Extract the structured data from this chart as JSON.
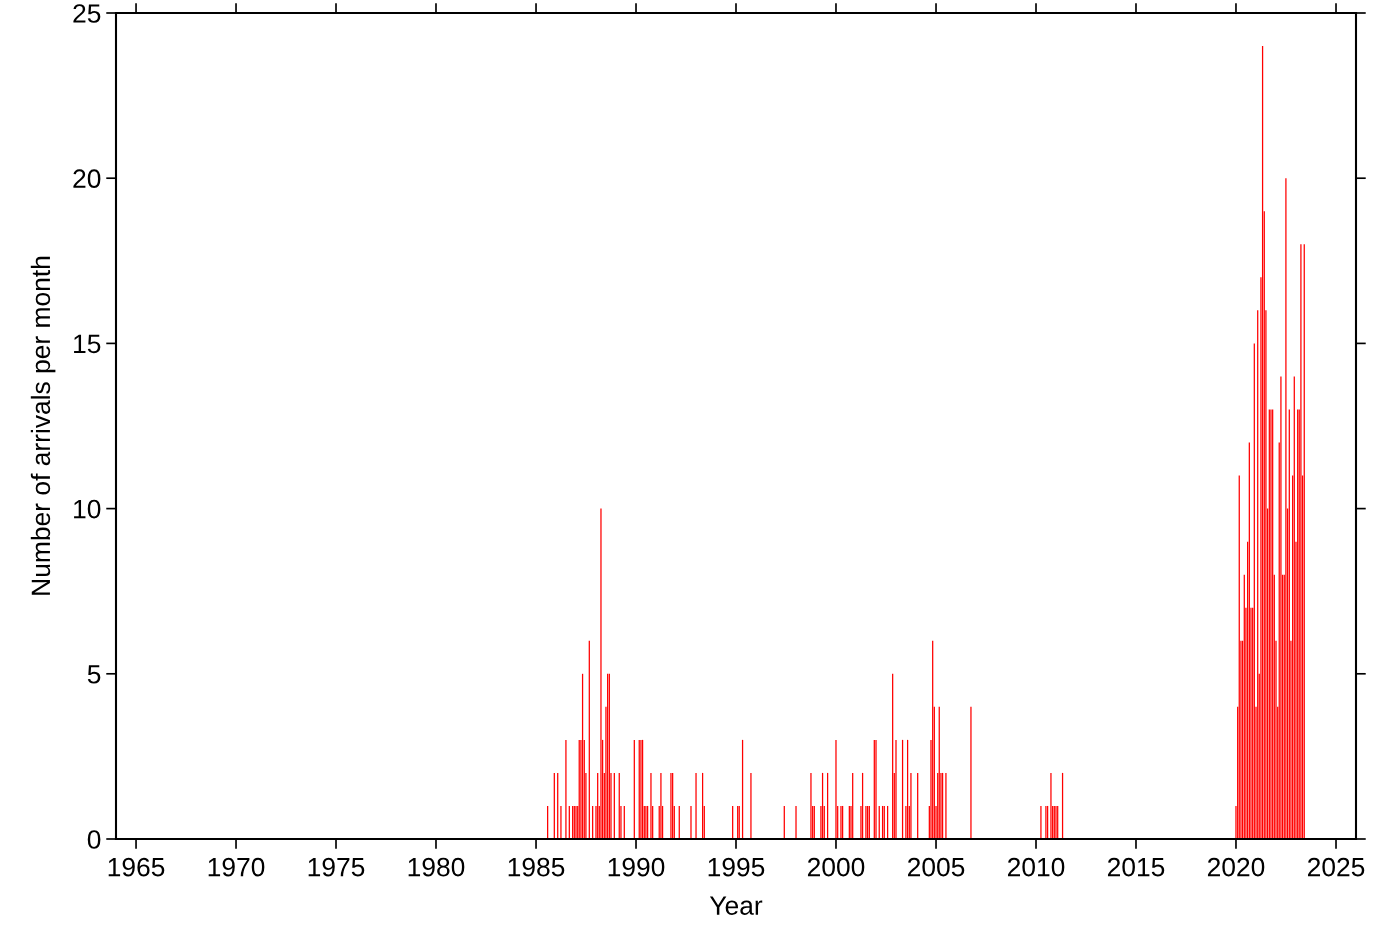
{
  "chart_data": {
    "type": "bar",
    "xlabel": "Year",
    "ylabel": "Number of arrivals per month",
    "x": [
      "1985-08",
      "1985-12",
      "1986-02",
      "1986-04",
      "1986-07",
      "1986-09",
      "1986-11",
      "1986-12",
      "1987-01",
      "1987-02",
      "1987-03",
      "1987-04",
      "1987-05",
      "1987-06",
      "1987-07",
      "1987-09",
      "1987-11",
      "1988-01",
      "1988-02",
      "1988-03",
      "1988-04",
      "1988-05",
      "1988-06",
      "1988-07",
      "1988-08",
      "1988-09",
      "1988-10",
      "1988-12",
      "1989-03",
      "1989-04",
      "1989-06",
      "1989-12",
      "1990-03",
      "1990-04",
      "1990-05",
      "1990-06",
      "1990-07",
      "1990-08",
      "1990-10",
      "1990-11",
      "1991-03",
      "1991-04",
      "1991-05",
      "1991-10",
      "1991-11",
      "1991-12",
      "1992-03",
      "1992-10",
      "1993-01",
      "1993-05",
      "1993-06",
      "1994-11",
      "1995-02",
      "1995-03",
      "1995-05",
      "1995-10",
      "1997-06",
      "1998-01",
      "1998-10",
      "1998-11",
      "1998-12",
      "1999-04",
      "1999-05",
      "1999-06",
      "1999-08",
      "2000-01",
      "2000-02",
      "2000-04",
      "2000-05",
      "2000-09",
      "2000-10",
      "2000-11",
      "2001-04",
      "2001-05",
      "2001-07",
      "2001-08",
      "2001-09",
      "2001-12",
      "2002-01",
      "2002-03",
      "2002-05",
      "2002-06",
      "2002-08",
      "2002-11",
      "2002-12",
      "2003-01",
      "2003-05",
      "2003-07",
      "2003-08",
      "2003-09",
      "2003-10",
      "2004-02",
      "2004-09",
      "2004-10",
      "2004-11",
      "2004-12",
      "2005-01",
      "2005-02",
      "2005-03",
      "2005-04",
      "2005-05",
      "2005-07",
      "2006-10",
      "2010-04",
      "2010-07",
      "2010-08",
      "2010-10",
      "2010-11",
      "2010-12",
      "2011-01",
      "2011-02",
      "2011-05",
      "2020-01",
      "2020-02",
      "2020-03",
      "2020-04",
      "2020-05",
      "2020-06",
      "2020-07",
      "2020-08",
      "2020-09",
      "2020-10",
      "2020-11",
      "2020-12",
      "2021-01",
      "2021-02",
      "2021-03",
      "2021-04",
      "2021-05",
      "2021-06",
      "2021-07",
      "2021-08",
      "2021-09",
      "2021-10",
      "2021-11",
      "2021-12",
      "2022-01",
      "2022-02",
      "2022-03",
      "2022-04",
      "2022-05",
      "2022-06",
      "2022-07",
      "2022-08",
      "2022-09",
      "2022-10",
      "2022-11",
      "2022-12",
      "2023-01",
      "2023-02",
      "2023-03",
      "2023-04",
      "2023-05",
      "2023-06"
    ],
    "values": [
      1,
      2,
      2,
      1,
      3,
      1,
      1,
      1,
      1,
      1,
      3,
      3,
      5,
      3,
      2,
      6,
      1,
      1,
      2,
      1,
      10,
      3,
      2,
      4,
      5,
      5,
      2,
      2,
      2,
      1,
      1,
      3,
      3,
      3,
      3,
      1,
      1,
      1,
      2,
      1,
      1,
      2,
      1,
      2,
      2,
      1,
      1,
      1,
      2,
      2,
      1,
      1,
      1,
      1,
      3,
      2,
      1,
      1,
      2,
      1,
      1,
      1,
      2,
      1,
      2,
      3,
      1,
      1,
      1,
      1,
      1,
      2,
      1,
      2,
      1,
      1,
      1,
      3,
      3,
      1,
      1,
      1,
      1,
      5,
      2,
      3,
      3,
      1,
      3,
      1,
      2,
      2,
      1,
      3,
      6,
      4,
      1,
      2,
      4,
      2,
      2,
      2,
      4,
      1,
      1,
      1,
      2,
      1,
      1,
      1,
      1,
      2,
      1,
      4,
      11,
      6,
      6,
      8,
      7,
      9,
      12,
      7,
      7,
      15,
      4,
      16,
      5,
      17,
      24,
      19,
      16,
      10,
      13,
      13,
      13,
      8,
      6,
      4,
      12,
      14,
      8,
      8,
      20,
      10,
      13,
      6,
      11,
      14,
      9,
      13,
      13,
      18,
      11,
      18
    ],
    "color": "#ff0000",
    "xlim": [
      "1964-01-01",
      "2026-01-01"
    ],
    "xticks": [
      {
        "value": "1965-01-01",
        "label": "1965"
      },
      {
        "value": "1970-01-01",
        "label": "1970"
      },
      {
        "value": "1975-01-01",
        "label": "1975"
      },
      {
        "value": "1980-01-01",
        "label": "1980"
      },
      {
        "value": "1985-01-01",
        "label": "1985"
      },
      {
        "value": "1990-01-01",
        "label": "1990"
      },
      {
        "value": "1995-01-01",
        "label": "1995"
      },
      {
        "value": "2000-01-01",
        "label": "2000"
      },
      {
        "value": "2005-01-01",
        "label": "2005"
      },
      {
        "value": "2010-01-01",
        "label": "2010"
      },
      {
        "value": "2015-01-01",
        "label": "2015"
      },
      {
        "value": "2020-01-01",
        "label": "2020"
      },
      {
        "value": "2025-01-01",
        "label": "2025"
      }
    ],
    "ylim": [
      0,
      25
    ],
    "yticks": [
      0,
      5,
      10,
      15,
      20,
      25
    ],
    "grid": false,
    "legend": false
  }
}
